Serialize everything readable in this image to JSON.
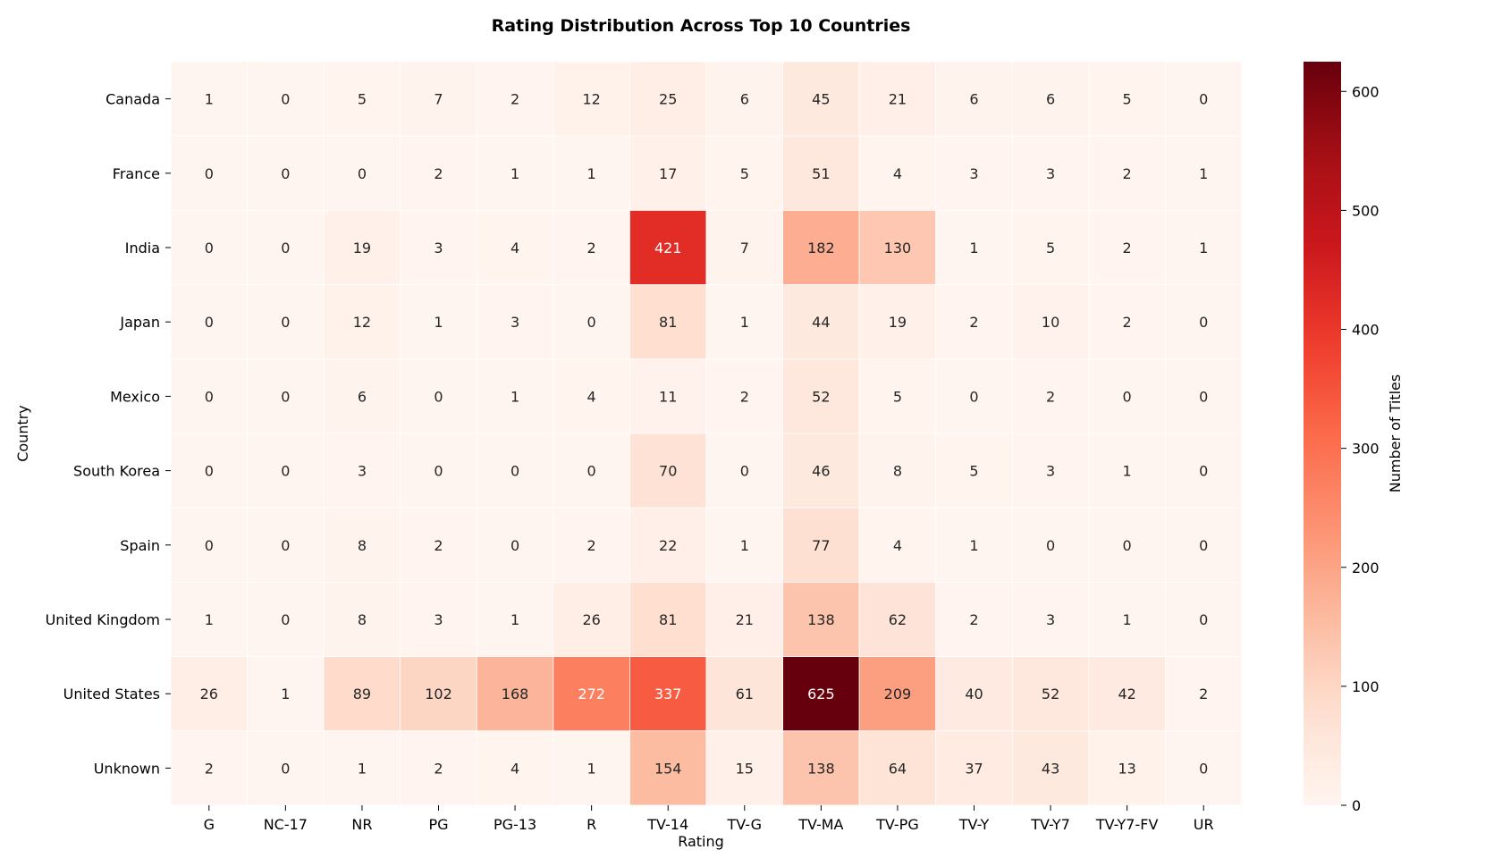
{
  "chart_data": {
    "type": "heatmap",
    "title": "Rating Distribution Across Top 10 Countries",
    "xlabel": "Rating",
    "ylabel": "Country",
    "colorbar_label": "Number of Titles",
    "colormap": "Reds",
    "vmin": 0,
    "vmax": 625,
    "colorbar_ticks": [
      0,
      100,
      200,
      300,
      400,
      500,
      600
    ],
    "columns": [
      "G",
      "NC-17",
      "NR",
      "PG",
      "PG-13",
      "R",
      "TV-14",
      "TV-G",
      "TV-MA",
      "TV-PG",
      "TV-Y",
      "TV-Y7",
      "TV-Y7-FV",
      "UR"
    ],
    "rows": [
      "Canada",
      "France",
      "India",
      "Japan",
      "Mexico",
      "South Korea",
      "Spain",
      "United Kingdom",
      "United States",
      "Unknown"
    ],
    "values": [
      [
        1,
        0,
        5,
        7,
        2,
        12,
        25,
        6,
        45,
        21,
        6,
        6,
        5,
        0
      ],
      [
        0,
        0,
        0,
        2,
        1,
        1,
        17,
        5,
        51,
        4,
        3,
        3,
        2,
        1
      ],
      [
        0,
        0,
        19,
        3,
        4,
        2,
        421,
        7,
        182,
        130,
        1,
        5,
        2,
        1
      ],
      [
        0,
        0,
        12,
        1,
        3,
        0,
        81,
        1,
        44,
        19,
        2,
        10,
        2,
        0
      ],
      [
        0,
        0,
        6,
        0,
        1,
        4,
        11,
        2,
        52,
        5,
        0,
        2,
        0,
        0
      ],
      [
        0,
        0,
        3,
        0,
        0,
        0,
        70,
        0,
        46,
        8,
        5,
        3,
        1,
        0
      ],
      [
        0,
        0,
        8,
        2,
        0,
        2,
        22,
        1,
        77,
        4,
        1,
        0,
        0,
        0
      ],
      [
        1,
        0,
        8,
        3,
        1,
        26,
        81,
        21,
        138,
        62,
        2,
        3,
        1,
        0
      ],
      [
        26,
        1,
        89,
        102,
        168,
        272,
        337,
        61,
        625,
        209,
        40,
        52,
        42,
        2
      ],
      [
        2,
        0,
        1,
        2,
        4,
        1,
        154,
        15,
        138,
        64,
        37,
        43,
        13,
        0
      ]
    ],
    "annotate": true,
    "grid_line_color": "#ffffff"
  }
}
